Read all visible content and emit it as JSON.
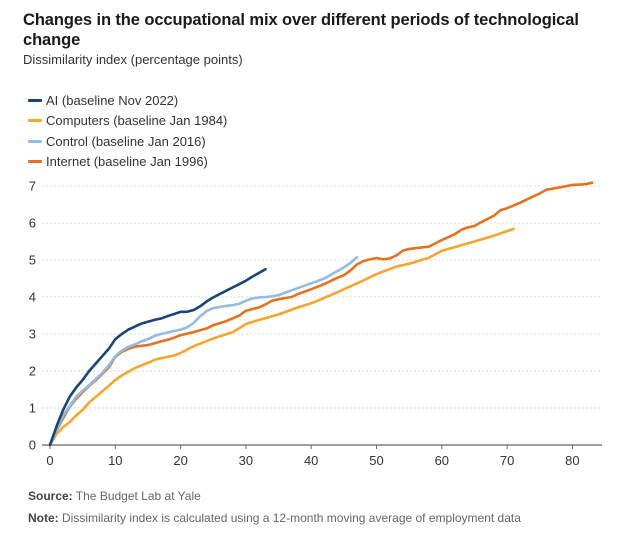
{
  "chart_data": {
    "type": "line",
    "title": "Changes in the occupational mix over different periods of technological change",
    "subtitle": "Dissimilarity index (percentage points)",
    "xlabel": "",
    "ylabel": "Dissimilarity index (percentage points)",
    "xlim": [
      0,
      85
    ],
    "ylim": [
      0,
      7
    ],
    "x_ticks": [
      0,
      10,
      20,
      30,
      40,
      50,
      60,
      70,
      80
    ],
    "y_ticks": [
      0,
      1,
      2,
      3,
      4,
      5,
      6,
      7
    ],
    "grid": "horizontal-dotted",
    "legend_position": "top-left",
    "series": [
      {
        "name": "AI (baseline Nov 2022)",
        "color": "#16457a",
        "points": [
          [
            0,
            0
          ],
          [
            1,
            0.5
          ],
          [
            2,
            0.95
          ],
          [
            3,
            1.3
          ],
          [
            4,
            1.55
          ],
          [
            5,
            1.76
          ],
          [
            6,
            2.0
          ],
          [
            7,
            2.2
          ],
          [
            8,
            2.4
          ],
          [
            9,
            2.6
          ],
          [
            10,
            2.86
          ],
          [
            11,
            3.0
          ],
          [
            12,
            3.12
          ],
          [
            13,
            3.2
          ],
          [
            14,
            3.28
          ],
          [
            15,
            3.33
          ],
          [
            16,
            3.38
          ],
          [
            17,
            3.42
          ],
          [
            18,
            3.48
          ],
          [
            19,
            3.54
          ],
          [
            20,
            3.6
          ],
          [
            21,
            3.6
          ],
          [
            22,
            3.65
          ],
          [
            23,
            3.75
          ],
          [
            24,
            3.88
          ],
          [
            25,
            3.99
          ],
          [
            26,
            4.08
          ],
          [
            27,
            4.17
          ],
          [
            28,
            4.26
          ],
          [
            29,
            4.35
          ],
          [
            30,
            4.44
          ],
          [
            31,
            4.55
          ],
          [
            32,
            4.65
          ],
          [
            33,
            4.75
          ]
        ]
      },
      {
        "name": "Computers (baseline Jan 1984)",
        "color": "#f7a531",
        "points": [
          [
            0,
            0
          ],
          [
            1,
            0.3
          ],
          [
            2,
            0.48
          ],
          [
            3,
            0.62
          ],
          [
            4,
            0.8
          ],
          [
            5,
            0.95
          ],
          [
            6,
            1.15
          ],
          [
            7,
            1.3
          ],
          [
            8,
            1.45
          ],
          [
            9,
            1.6
          ],
          [
            10,
            1.76
          ],
          [
            11,
            1.88
          ],
          [
            12,
            1.98
          ],
          [
            13,
            2.08
          ],
          [
            14,
            2.15
          ],
          [
            15,
            2.22
          ],
          [
            16,
            2.3
          ],
          [
            17,
            2.35
          ],
          [
            18,
            2.38
          ],
          [
            19,
            2.42
          ],
          [
            20,
            2.49
          ],
          [
            22,
            2.67
          ],
          [
            25,
            2.88
          ],
          [
            28,
            3.05
          ],
          [
            30,
            3.27
          ],
          [
            32,
            3.38
          ],
          [
            35,
            3.53
          ],
          [
            38,
            3.72
          ],
          [
            40,
            3.83
          ],
          [
            43,
            4.05
          ],
          [
            45,
            4.21
          ],
          [
            48,
            4.45
          ],
          [
            50,
            4.62
          ],
          [
            53,
            4.82
          ],
          [
            55,
            4.9
          ],
          [
            58,
            5.06
          ],
          [
            60,
            5.25
          ],
          [
            63,
            5.4
          ],
          [
            65,
            5.5
          ],
          [
            68,
            5.66
          ],
          [
            70,
            5.78
          ],
          [
            71,
            5.84
          ]
        ]
      },
      {
        "name": "Control (baseline Jan 2016)",
        "color": "#92bbe6",
        "points": [
          [
            0,
            0
          ],
          [
            1,
            0.42
          ],
          [
            2,
            0.8
          ],
          [
            3,
            1.05
          ],
          [
            4,
            1.3
          ],
          [
            5,
            1.47
          ],
          [
            6,
            1.62
          ],
          [
            7,
            1.78
          ],
          [
            8,
            1.95
          ],
          [
            9,
            2.15
          ],
          [
            10,
            2.4
          ],
          [
            11,
            2.55
          ],
          [
            12,
            2.65
          ],
          [
            13,
            2.72
          ],
          [
            14,
            2.8
          ],
          [
            15,
            2.86
          ],
          [
            16,
            2.95
          ],
          [
            17,
            3.0
          ],
          [
            18,
            3.04
          ],
          [
            19,
            3.08
          ],
          [
            20,
            3.12
          ],
          [
            21,
            3.18
          ],
          [
            22,
            3.3
          ],
          [
            23,
            3.48
          ],
          [
            24,
            3.62
          ],
          [
            25,
            3.7
          ],
          [
            26,
            3.73
          ],
          [
            27,
            3.76
          ],
          [
            28,
            3.78
          ],
          [
            29,
            3.82
          ],
          [
            30,
            3.9
          ],
          [
            31,
            3.96
          ],
          [
            32,
            3.99
          ],
          [
            33,
            4.0
          ],
          [
            34,
            4.02
          ],
          [
            35,
            4.05
          ],
          [
            37,
            4.18
          ],
          [
            40,
            4.37
          ],
          [
            42,
            4.5
          ],
          [
            44,
            4.7
          ],
          [
            45,
            4.8
          ],
          [
            46,
            4.92
          ],
          [
            47,
            5.07
          ]
        ]
      },
      {
        "name": "Internet (baseline Jan 1996)",
        "color": "#e8711d",
        "points": [
          [
            0,
            0
          ],
          [
            1,
            0.4
          ],
          [
            2,
            0.72
          ],
          [
            3,
            1.03
          ],
          [
            4,
            1.25
          ],
          [
            5,
            1.43
          ],
          [
            6,
            1.6
          ],
          [
            7,
            1.75
          ],
          [
            8,
            1.92
          ],
          [
            9,
            2.1
          ],
          [
            10,
            2.38
          ],
          [
            11,
            2.52
          ],
          [
            12,
            2.6
          ],
          [
            13,
            2.66
          ],
          [
            14,
            2.68
          ],
          [
            15,
            2.7
          ],
          [
            16,
            2.75
          ],
          [
            17,
            2.8
          ],
          [
            18,
            2.84
          ],
          [
            19,
            2.9
          ],
          [
            20,
            2.97
          ],
          [
            22,
            3.05
          ],
          [
            24,
            3.15
          ],
          [
            25,
            3.24
          ],
          [
            27,
            3.35
          ],
          [
            29,
            3.5
          ],
          [
            30,
            3.63
          ],
          [
            32,
            3.72
          ],
          [
            33,
            3.8
          ],
          [
            34,
            3.9
          ],
          [
            35,
            3.94
          ],
          [
            37,
            4.0
          ],
          [
            38,
            4.08
          ],
          [
            40,
            4.21
          ],
          [
            42,
            4.35
          ],
          [
            44,
            4.52
          ],
          [
            45,
            4.59
          ],
          [
            46,
            4.72
          ],
          [
            47,
            4.88
          ],
          [
            48,
            4.97
          ],
          [
            49,
            5.02
          ],
          [
            50,
            5.05
          ],
          [
            51,
            5.02
          ],
          [
            52,
            5.04
          ],
          [
            53,
            5.12
          ],
          [
            54,
            5.25
          ],
          [
            55,
            5.3
          ],
          [
            56,
            5.32
          ],
          [
            58,
            5.36
          ],
          [
            60,
            5.54
          ],
          [
            62,
            5.7
          ],
          [
            63,
            5.82
          ],
          [
            64,
            5.88
          ],
          [
            65,
            5.92
          ],
          [
            66,
            6.02
          ],
          [
            68,
            6.2
          ],
          [
            69,
            6.35
          ],
          [
            70,
            6.4
          ],
          [
            72,
            6.55
          ],
          [
            74,
            6.72
          ],
          [
            75,
            6.8
          ],
          [
            76,
            6.9
          ],
          [
            78,
            6.96
          ],
          [
            80,
            7.03
          ],
          [
            82,
            7.05
          ],
          [
            83,
            7.09
          ]
        ]
      }
    ]
  },
  "header": {
    "title": "Changes in the occupational mix over different periods of technological change",
    "subtitle": "Dissimilarity index (percentage points)"
  },
  "legend": [
    {
      "label": "AI (baseline Nov 2022)",
      "color": "#16457a"
    },
    {
      "label": "Computers (baseline Jan 1984)",
      "color": "#f7a531"
    },
    {
      "label": "Control (baseline Jan 2016)",
      "color": "#92bbe6"
    },
    {
      "label": "Internet (baseline Jan 1996)",
      "color": "#e8711d"
    }
  ],
  "footer": {
    "source_label": "Source:",
    "source_text": " The Budget Lab at Yale",
    "note_label": "Note:",
    "note_text": " Dissimilarity index is calculated using a 12-month moving average of employment data"
  }
}
